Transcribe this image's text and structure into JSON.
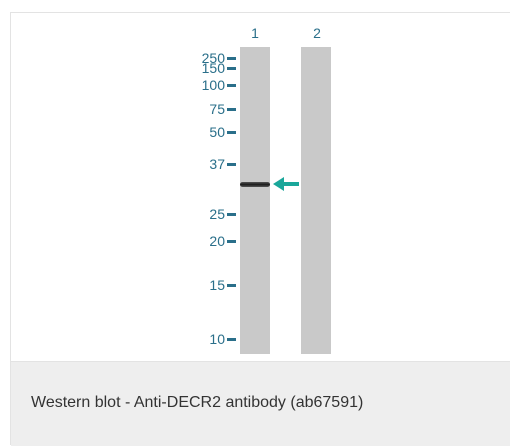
{
  "lanes": [
    {
      "label": "1"
    },
    {
      "label": "2"
    }
  ],
  "markers": [
    {
      "label": "250",
      "kda": 250
    },
    {
      "label": "150",
      "kda": 150
    },
    {
      "label": "100",
      "kda": 100
    },
    {
      "label": "75",
      "kda": 75
    },
    {
      "label": "50",
      "kda": 50
    },
    {
      "label": "37",
      "kda": 37
    },
    {
      "label": "25",
      "kda": 25
    },
    {
      "label": "20",
      "kda": 20
    },
    {
      "label": "15",
      "kda": 15
    },
    {
      "label": "10",
      "kda": 10
    }
  ],
  "band": {
    "lane": 1,
    "kda": 31
  },
  "colors": {
    "marker_text": "#2a6f8a",
    "arrow": "#1aa79a",
    "lane": "#c9c9c9",
    "caption_bg": "#eeeeee"
  },
  "icons": {
    "band_indicator": "arrow-left-icon"
  },
  "caption": "Western blot - Anti-DECR2 antibody (ab67591)"
}
